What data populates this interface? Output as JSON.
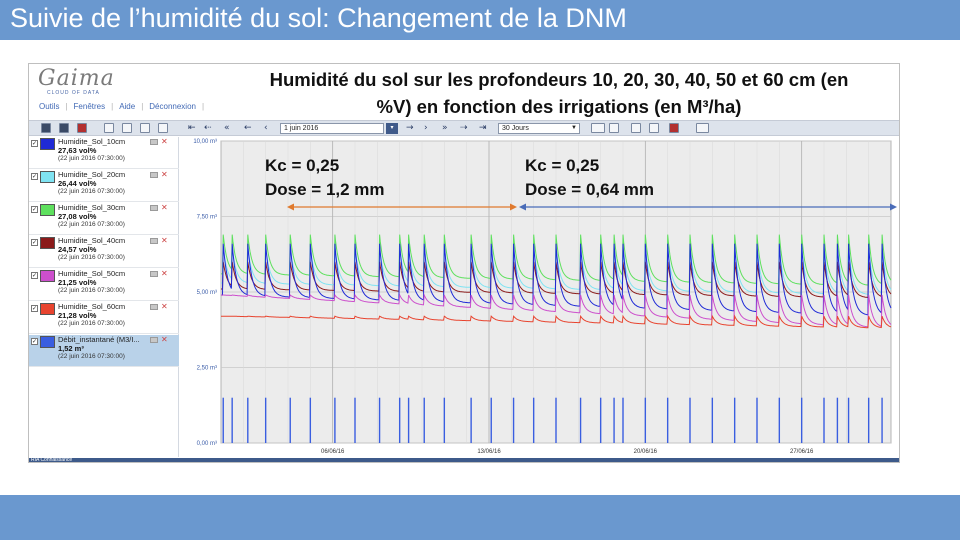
{
  "slide": {
    "title": "Suivie de l’humidité du sol: Changement de la DNM",
    "header_color": "#6a98cf"
  },
  "app": {
    "logo_text": "Gaima",
    "logo_sub": "CLOUD OF DATA",
    "menu": [
      "Outils",
      "Fenêtres",
      "Aide",
      "Déconnexion"
    ],
    "status_text": "RIA Connaissance"
  },
  "overlay": {
    "title_line1": "Humidité du sol sur les profondeurs 10, 20, 30, 40, 50 et 60 cm (en",
    "title_line2": "%V) en fonction des irrigations (en M³/ha)",
    "annotations": [
      {
        "kc": "Kc = 0,25",
        "dose": "Dose = 1,2 mm",
        "arrow_color": "#e07a2e"
      },
      {
        "kc": "Kc = 0,25",
        "dose": "Dose = 0,64 mm",
        "arrow_color": "#4a6cb8"
      }
    ]
  },
  "toolbar": {
    "date_value": "1 juin 2016",
    "period_value": "30 Jours",
    "icons": [
      "save-icon",
      "export-icon",
      "print-icon",
      "pdf-icon",
      "first-icon",
      "prev-icon",
      "next-icon",
      "last-icon",
      "graph-mode-icon",
      "table-icon",
      "settings-icon"
    ]
  },
  "sensors": [
    {
      "name": "Humidite_Sol_10cm",
      "value": "27,63 vol%",
      "timestamp": "(22 juin 2016 07:30:00)",
      "color": "#1f2ad6"
    },
    {
      "name": "Humidite_Sol_20cm",
      "value": "26,44 vol%",
      "timestamp": "(22 juin 2016 07:30:00)",
      "color": "#7fe3f2"
    },
    {
      "name": "Humidite_Sol_30cm",
      "value": "27,08 vol%",
      "timestamp": "(22 juin 2016 07:30:00)",
      "color": "#5ee05e"
    },
    {
      "name": "Humidite_Sol_40cm",
      "value": "24,57 vol%",
      "timestamp": "(22 juin 2016 07:30:00)",
      "color": "#8b1a1a"
    },
    {
      "name": "Humidite_Sol_50cm",
      "value": "21,25 vol%",
      "timestamp": "(22 juin 2016 07:30:00)",
      "color": "#cc4fcc"
    },
    {
      "name": "Humidite_Sol_60cm",
      "value": "21,28 vol%",
      "timestamp": "(22 juin 2016 07:30:00)",
      "color": "#e8442f"
    },
    {
      "name": "Débit_instantané (M3/I...",
      "value": "1,52 m³",
      "timestamp": "(22 juin 2016 07:30:00)",
      "color": "#3a5ee0"
    }
  ],
  "chart_data": {
    "type": "line",
    "y_ticks": [
      "10,00 m³",
      "7,50 m³",
      "5,00 m³",
      "2,50 m³",
      "0,00 m³"
    ],
    "ylim": [
      0,
      10
    ],
    "x_ticks": [
      "06/06/16",
      "13/06/16",
      "20/06/16",
      "27/06/16"
    ],
    "x_range_days": [
      1,
      31
    ],
    "grid": true,
    "series": [
      {
        "name": "Humidite_Sol_30cm",
        "color": "#5ee05e",
        "baseline_start": 5.6,
        "baseline_end": 5.2,
        "peak": 6.9
      },
      {
        "name": "Humidite_Sol_20cm",
        "color": "#7fe3f2",
        "baseline_start": 5.3,
        "baseline_end": 4.9,
        "peak": 6.5
      },
      {
        "name": "Humidite_Sol_40cm",
        "color": "#8b1a1a",
        "baseline_start": 5.1,
        "baseline_end": 4.8,
        "peak": 6.0
      },
      {
        "name": "Humidite_Sol_10cm",
        "color": "#1f2ad6",
        "baseline_start": 4.9,
        "baseline_end": 4.2,
        "peak": 6.6
      },
      {
        "name": "Humidite_Sol_50cm",
        "color": "#cc4fcc",
        "baseline_start": 4.9,
        "baseline_end": 3.8,
        "peak": 4.9
      },
      {
        "name": "Humidite_Sol_60cm",
        "color": "#e8442f",
        "baseline_start": 4.2,
        "baseline_end": 3.8,
        "peak": 4.2
      }
    ],
    "irrigation_days": [
      1.1,
      1.5,
      2.2,
      3.0,
      4.1,
      5.0,
      6.1,
      7.0,
      8.1,
      9.0,
      9.4,
      10.1,
      11.0,
      12.2,
      13.1,
      14.1,
      15.0,
      16.0,
      17.1,
      18.0,
      18.6,
      19.0,
      20.0,
      21.0,
      22.0,
      23.0,
      24.0,
      25.0,
      26.0,
      27.0,
      28.0,
      28.6,
      29.1,
      30.0,
      30.6
    ],
    "irrigation_flow": 1.5
  }
}
